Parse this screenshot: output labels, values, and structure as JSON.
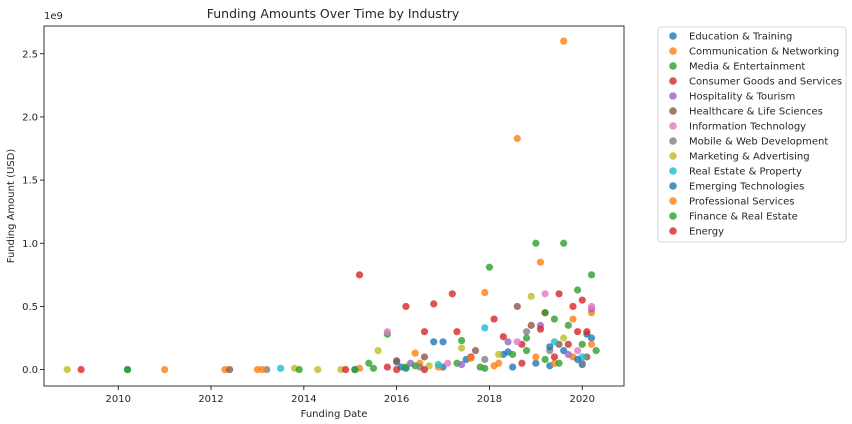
{
  "chart_data": {
    "type": "scatter",
    "title": "Funding Amounts Over Time by Industry",
    "xlabel": "Funding Date",
    "ylabel": "Funding Amount (USD)",
    "y_offset_text": "1e9",
    "xlim": [
      2008.4,
      2020.9
    ],
    "ylim": [
      -0.13,
      2.72
    ],
    "x_ticks": [
      2010,
      2012,
      2014,
      2016,
      2018,
      2020
    ],
    "x_tick_labels": [
      "2010",
      "2012",
      "2014",
      "2016",
      "2018",
      "2020"
    ],
    "y_ticks": [
      0.0,
      0.5,
      1.0,
      1.5,
      2.0,
      2.5
    ],
    "y_tick_labels": [
      "0.0",
      "0.5",
      "1.0",
      "1.5",
      "2.0",
      "2.5"
    ],
    "y_unit": "USD billions (axis scaled by 1e9)",
    "grid": false,
    "legend_position": "outside-right-top",
    "series": [
      {
        "name": "Education & Training",
        "color": "#1f77b4",
        "points": [
          [
            2016.0,
            0.06
          ],
          [
            2016.8,
            0.22
          ],
          [
            2017.5,
            0.08
          ],
          [
            2018.3,
            0.12
          ],
          [
            2019.0,
            0.05
          ],
          [
            2019.6,
            0.15
          ],
          [
            2020.1,
            0.28
          ],
          [
            2020.2,
            0.25
          ],
          [
            2016.2,
            0.01
          ],
          [
            2017.0,
            0.02
          ],
          [
            2018.5,
            0.02
          ],
          [
            2019.3,
            0.03
          ],
          [
            2020.0,
            0.04
          ]
        ]
      },
      {
        "name": "Communication & Networking",
        "color": "#ff7f0e",
        "points": [
          [
            2011.0,
            0.0
          ],
          [
            2012.3,
            0.0
          ],
          [
            2013.0,
            0.0
          ],
          [
            2015.2,
            0.01
          ],
          [
            2016.5,
            0.05
          ],
          [
            2017.9,
            0.61
          ],
          [
            2018.6,
            1.83
          ],
          [
            2019.1,
            0.85
          ],
          [
            2019.4,
            0.05
          ],
          [
            2020.2,
            0.45
          ],
          [
            2016.9,
            0.02
          ],
          [
            2018.1,
            0.03
          ],
          [
            2019.8,
            0.1
          ]
        ]
      },
      {
        "name": "Media & Entertainment",
        "color": "#2ca02c",
        "points": [
          [
            2015.8,
            0.28
          ],
          [
            2018.0,
            0.81
          ],
          [
            2019.0,
            1.0
          ],
          [
            2019.6,
            1.0
          ],
          [
            2019.9,
            0.63
          ],
          [
            2020.2,
            0.75
          ],
          [
            2019.4,
            0.4
          ],
          [
            2017.3,
            0.05
          ],
          [
            2016.4,
            0.03
          ],
          [
            2018.8,
            0.15
          ],
          [
            2020.0,
            0.2
          ],
          [
            2015.5,
            0.01
          ],
          [
            2017.8,
            0.02
          ],
          [
            2019.2,
            0.08
          ]
        ]
      },
      {
        "name": "Consumer Goods and Services",
        "color": "#d62728",
        "points": [
          [
            2009.2,
            0.0
          ],
          [
            2015.2,
            0.75
          ],
          [
            2016.2,
            0.5
          ],
          [
            2016.8,
            0.52
          ],
          [
            2017.2,
            0.6
          ],
          [
            2018.1,
            0.4
          ],
          [
            2019.2,
            0.45
          ],
          [
            2019.5,
            0.6
          ],
          [
            2019.8,
            0.5
          ],
          [
            2020.0,
            0.55
          ],
          [
            2015.8,
            0.02
          ],
          [
            2016.6,
            0.3
          ],
          [
            2017.6,
            0.1
          ],
          [
            2018.7,
            0.2
          ],
          [
            2019.9,
            0.3
          ]
        ]
      },
      {
        "name": "Hospitality & Tourism",
        "color": "#9467bd",
        "points": [
          [
            2016.3,
            0.05
          ],
          [
            2018.4,
            0.22
          ],
          [
            2019.1,
            0.35
          ],
          [
            2020.2,
            0.48
          ],
          [
            2017.4,
            0.04
          ],
          [
            2019.7,
            0.12
          ]
        ]
      },
      {
        "name": "Healthcare & Life Sciences",
        "color": "#8c564b",
        "points": [
          [
            2012.4,
            0.0
          ],
          [
            2016.0,
            0.07
          ],
          [
            2016.6,
            0.1
          ],
          [
            2018.6,
            0.5
          ],
          [
            2018.9,
            0.35
          ],
          [
            2019.5,
            0.2
          ],
          [
            2017.7,
            0.15
          ],
          [
            2020.1,
            0.1
          ]
        ]
      },
      {
        "name": "Information Technology",
        "color": "#e377c2",
        "points": [
          [
            2015.8,
            0.3
          ],
          [
            2018.6,
            0.22
          ],
          [
            2019.2,
            0.6
          ],
          [
            2020.2,
            0.5
          ],
          [
            2017.1,
            0.05
          ],
          [
            2019.9,
            0.15
          ]
        ]
      },
      {
        "name": "Mobile & Web Development",
        "color": "#7f7f7f",
        "points": [
          [
            2013.2,
            0.0
          ],
          [
            2016.5,
            0.02
          ],
          [
            2018.8,
            0.3
          ],
          [
            2019.3,
            0.15
          ],
          [
            2017.9,
            0.08
          ],
          [
            2020.0,
            0.05
          ]
        ]
      },
      {
        "name": "Marketing & Advertising",
        "color": "#bcbd22",
        "points": [
          [
            2008.9,
            0.0
          ],
          [
            2013.8,
            0.01
          ],
          [
            2014.3,
            0.0
          ],
          [
            2014.8,
            0.0
          ],
          [
            2015.6,
            0.15
          ],
          [
            2017.4,
            0.17
          ],
          [
            2018.9,
            0.58
          ],
          [
            2018.2,
            0.12
          ],
          [
            2019.6,
            0.25
          ],
          [
            2016.7,
            0.03
          ]
        ]
      },
      {
        "name": "Real Estate & Property",
        "color": "#17becf",
        "points": [
          [
            2013.5,
            0.01
          ],
          [
            2017.9,
            0.33
          ],
          [
            2019.4,
            0.22
          ],
          [
            2016.9,
            0.04
          ],
          [
            2020.0,
            0.1
          ]
        ]
      },
      {
        "name": "Emerging Technologies",
        "color": "#1f77b4",
        "points": [
          [
            2010.2,
            0.0
          ],
          [
            2015.1,
            0.0
          ],
          [
            2017.0,
            0.22
          ],
          [
            2018.4,
            0.14
          ],
          [
            2019.3,
            0.18
          ],
          [
            2016.1,
            0.02
          ],
          [
            2019.9,
            0.08
          ]
        ]
      },
      {
        "name": "Professional Services",
        "color": "#ff7f0e",
        "points": [
          [
            2013.1,
            0.0
          ],
          [
            2016.4,
            0.13
          ],
          [
            2017.6,
            0.09
          ],
          [
            2019.6,
            2.6
          ],
          [
            2019.8,
            0.4
          ],
          [
            2020.2,
            0.2
          ],
          [
            2018.2,
            0.05
          ],
          [
            2019.0,
            0.1
          ]
        ]
      },
      {
        "name": "Finance & Real Estate",
        "color": "#2ca02c",
        "points": [
          [
            2010.2,
            0.0
          ],
          [
            2013.9,
            0.0
          ],
          [
            2015.1,
            0.0
          ],
          [
            2015.4,
            0.05
          ],
          [
            2017.4,
            0.23
          ],
          [
            2018.5,
            0.12
          ],
          [
            2019.2,
            0.45
          ],
          [
            2019.7,
            0.35
          ],
          [
            2020.3,
            0.15
          ],
          [
            2016.2,
            0.02
          ],
          [
            2017.9,
            0.01
          ],
          [
            2018.8,
            0.25
          ],
          [
            2019.5,
            0.05
          ]
        ]
      },
      {
        "name": "Energy",
        "color": "#d62728",
        "points": [
          [
            2014.9,
            0.0
          ],
          [
            2016.0,
            0.0
          ],
          [
            2017.3,
            0.3
          ],
          [
            2018.3,
            0.26
          ],
          [
            2019.1,
            0.32
          ],
          [
            2019.7,
            0.2
          ],
          [
            2020.1,
            0.3
          ],
          [
            2016.6,
            0.0
          ],
          [
            2018.7,
            0.05
          ],
          [
            2019.4,
            0.1
          ]
        ]
      }
    ]
  }
}
